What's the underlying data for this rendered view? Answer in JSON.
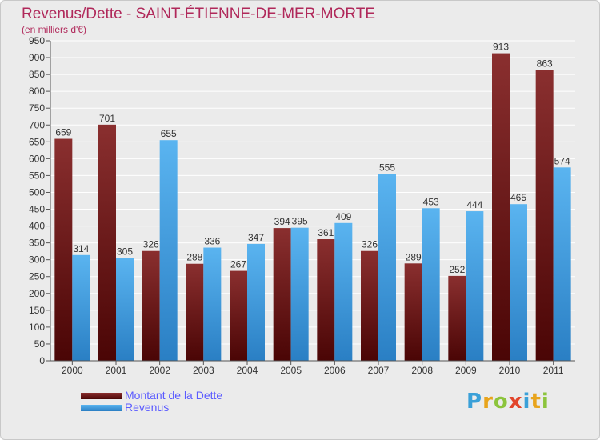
{
  "title": "Revenus/Dette - SAINT-ÉTIENNE-DE-MER-MORTE",
  "subtitle": "(en milliers d'€)",
  "logo": {
    "text": "Proxiti",
    "letters": [
      {
        "ch": "P",
        "color": "#3aa0d8"
      },
      {
        "ch": "r",
        "color": "#e8a41c"
      },
      {
        "ch": "o",
        "color": "#8cc43c"
      },
      {
        "ch": "x",
        "color": "#e2452b"
      },
      {
        "ch": "i",
        "color": "#3aa0d8"
      },
      {
        "ch": "t",
        "color": "#e8a41c"
      },
      {
        "ch": "i",
        "color": "#8cc43c"
      }
    ]
  },
  "chart_data": {
    "type": "bar",
    "categories": [
      "2000",
      "2001",
      "2002",
      "2003",
      "2004",
      "2005",
      "2006",
      "2007",
      "2008",
      "2009",
      "2010",
      "2011"
    ],
    "series": [
      {
        "name": "Montant de la Dette",
        "color": "#7a1f1f",
        "values": [
          659,
          701,
          326,
          288,
          267,
          394,
          361,
          326,
          289,
          252,
          913,
          863
        ]
      },
      {
        "name": "Revenus",
        "color": "#4aa3e6",
        "values": [
          314,
          305,
          655,
          336,
          347,
          395,
          409,
          555,
          453,
          444,
          465,
          574
        ]
      }
    ],
    "ylim": [
      0,
      950
    ],
    "yticks": [
      0,
      50,
      100,
      150,
      200,
      250,
      300,
      350,
      400,
      450,
      500,
      550,
      600,
      650,
      700,
      750,
      800,
      850,
      900,
      950
    ],
    "grid": true,
    "legend": "bottom-left"
  }
}
